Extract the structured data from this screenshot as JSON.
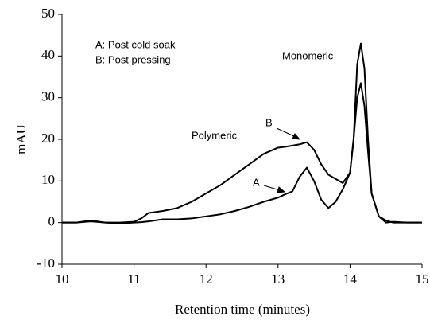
{
  "chart_data": {
    "type": "line",
    "x_label": "Retention time (minutes)",
    "y_label": "mAU",
    "x": [
      10,
      10.2,
      10.4,
      10.6,
      10.8,
      11.0,
      11.1,
      11.2,
      11.4,
      11.6,
      11.8,
      12.0,
      12.2,
      12.4,
      12.6,
      12.8,
      13.0,
      13.1,
      13.2,
      13.3,
      13.4,
      13.5,
      13.6,
      13.7,
      13.8,
      13.9,
      14.0,
      14.05,
      14.1,
      14.15,
      14.2,
      14.25,
      14.3,
      14.4,
      14.5,
      14.6,
      14.8,
      15.0
    ],
    "series": [
      {
        "name": "B",
        "color": "#000000",
        "values": [
          0,
          0,
          0.5,
          0,
          0,
          0.2,
          1,
          2.3,
          2.8,
          3.5,
          5,
          7,
          9,
          11.5,
          14,
          16.5,
          18,
          18.2,
          18.5,
          18.8,
          19.3,
          17.5,
          14,
          11.5,
          10.5,
          9.5,
          12,
          20,
          38,
          43,
          37,
          20,
          7,
          1.5,
          0.5,
          0,
          0,
          0
        ]
      },
      {
        "name": "A",
        "color": "#000000",
        "values": [
          0,
          0,
          0.3,
          0,
          -0.2,
          0,
          0.1,
          0.3,
          0.8,
          0.8,
          1,
          1.5,
          2,
          2.8,
          3.8,
          5,
          6,
          6.8,
          7.5,
          11,
          13.2,
          10,
          5.5,
          3.5,
          5,
          8,
          12,
          20,
          30,
          33.5,
          28,
          17,
          7,
          1.5,
          0,
          0.2,
          0,
          0
        ]
      }
    ],
    "annotations": [
      "A: Post cold soak",
      "B: Post pressing",
      "Polymeric",
      "Monomeric"
    ],
    "xlim": [
      10,
      15
    ],
    "xticks": [
      10,
      11,
      12,
      13,
      14,
      15
    ],
    "ylim": [
      -10,
      50
    ],
    "yticks": [
      -10,
      0,
      10,
      20,
      30,
      40,
      50
    ],
    "grid": false
  }
}
